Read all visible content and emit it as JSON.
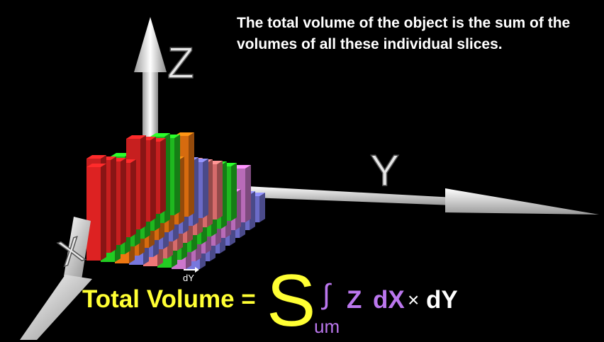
{
  "caption": "The total volume of the object is the sum of the volumes of all these individual slices.",
  "axes": {
    "z_label": "Z",
    "y_label": "Y",
    "x_label": "X"
  },
  "slice_width_label": "dY",
  "formula": {
    "lhs": "Total Volume =",
    "sum_S": "S",
    "sum_um": "um",
    "integral": "∫",
    "integrand": "Z",
    "dx": "dX",
    "times": "×",
    "dy": "dY"
  },
  "colors": {
    "formula_yellow": "#ffff33",
    "formula_purple": "#bb77ee",
    "axis_white": "#e6e6e6",
    "slices": [
      "#dd2222",
      "#22cc22",
      "#ee7711",
      "#7777dd",
      "#ee7777",
      "#22cc22",
      "#cc77cc",
      "#7777dd"
    ]
  }
}
